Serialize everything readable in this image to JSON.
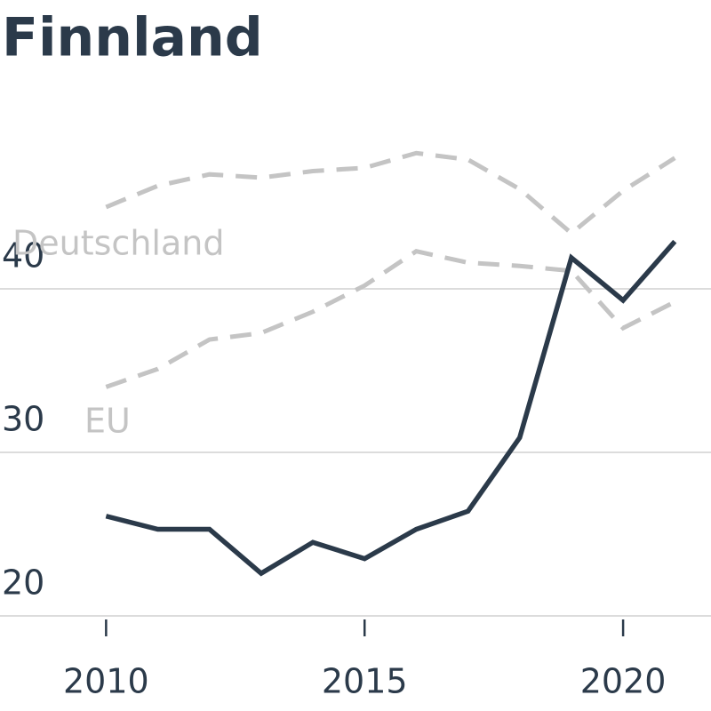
{
  "chart_data": {
    "type": "line",
    "title": "Finnland",
    "x": [
      2010,
      2011,
      2012,
      2013,
      2014,
      2015,
      2016,
      2017,
      2018,
      2019,
      2020,
      2021
    ],
    "series": [
      {
        "name": "Deutschland",
        "color": "#c4c4c4",
        "dashed": true,
        "values": [
          45.0,
          46.3,
          47.0,
          46.8,
          47.2,
          47.4,
          48.3,
          47.9,
          46.1,
          43.4,
          46.0,
          48.0
        ]
      },
      {
        "name": "EU",
        "color": "#c4c4c4",
        "dashed": true,
        "values": [
          34.0,
          35.1,
          36.9,
          37.3,
          38.6,
          40.2,
          42.3,
          41.6,
          41.4,
          41.1,
          37.6,
          39.2
        ]
      },
      {
        "color": "#2b3a4a",
        "dashed": false,
        "values": [
          26.1,
          25.3,
          25.3,
          22.6,
          24.5,
          23.5,
          25.3,
          26.4,
          30.9,
          41.9,
          39.3,
          42.9
        ]
      }
    ],
    "xlim": [
      2008,
      2021.7
    ],
    "xticks": [
      2010,
      2015,
      2020
    ],
    "ylim": [
      20,
      49
    ],
    "yticks": [
      20,
      30,
      40
    ],
    "grid": true
  }
}
